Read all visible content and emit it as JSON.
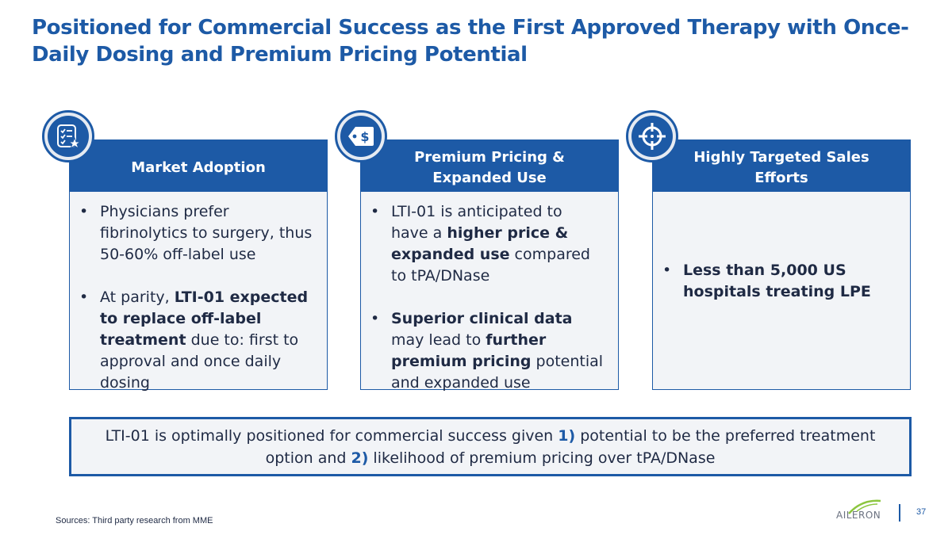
{
  "slide": {
    "title": "Positioned for Commercial Success as the First Approved Therapy with Once-Daily Dosing and Premium Pricing Potential",
    "page_number": "37",
    "sources": "Sources: Third party research from MME"
  },
  "cards": [
    {
      "header": "Market Adoption",
      "icon": "checklist-star-icon",
      "bullets": [
        [
          {
            "t": "Physicians prefer fibrinolytics to surgery, thus 50-60% off-label use",
            "b": false
          }
        ],
        [
          {
            "t": "At parity, ",
            "b": false
          },
          {
            "t": "LTI-01 expected to replace off-label treatment",
            "b": true
          },
          {
            "t": " due to: first to approval and once daily dosing",
            "b": false
          }
        ]
      ]
    },
    {
      "header_line1": "Premium Pricing &",
      "header_line2": "Expanded Use",
      "icon": "price-tag-dollar-icon",
      "bullets": [
        [
          {
            "t": "LTI-01 is anticipated to have a ",
            "b": false
          },
          {
            "t": "higher price & expanded use",
            "b": true
          },
          {
            "t": " compared to tPA/DNase",
            "b": false
          }
        ],
        [
          {
            "t": "Superior clinical data",
            "b": true
          },
          {
            "t": " may lead to ",
            "b": false
          },
          {
            "t": "further premium pricing",
            "b": true
          },
          {
            "t": " potential and expanded use",
            "b": false
          }
        ]
      ]
    },
    {
      "header": "Highly Targeted Sales Efforts",
      "icon": "crosshair-target-icon",
      "bullets": [
        [
          {
            "t": "Less than 5,000 US hospitals treating LPE",
            "b": true
          }
        ]
      ]
    }
  ],
  "summary": {
    "part1": "LTI-01 is optimally positioned for commercial success given ",
    "num1": "1)",
    "part2": " potential to be the preferred treatment option and ",
    "num2": "2)",
    "part3": " likelihood of premium pricing over tPA/DNase"
  },
  "logo": {
    "text": "AILERON"
  },
  "colors": {
    "brand_blue": "#1d5aa6",
    "panel_bg": "#f2f4f7",
    "text_dark": "#1f2a44"
  }
}
